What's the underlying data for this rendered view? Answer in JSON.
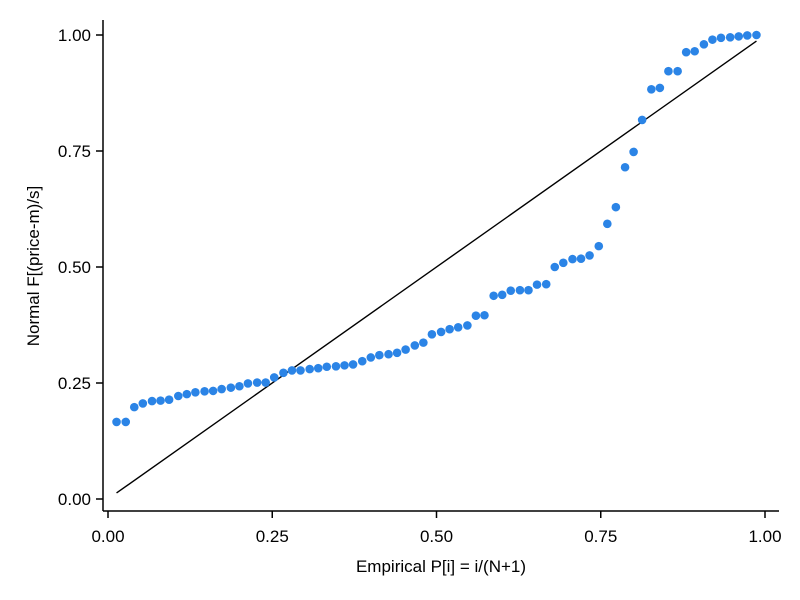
{
  "chart_data": {
    "type": "scatter",
    "xlabel": "Empirical P[i] = i/(N+1)",
    "ylabel": "Normal F[(price-m)/s]",
    "xlim": [
      0,
      1
    ],
    "ylim": [
      0,
      1
    ],
    "xticks": [
      "0.00",
      "0.25",
      "0.50",
      "0.75",
      "1.00"
    ],
    "yticks": [
      "0.00",
      "0.25",
      "0.50",
      "0.75",
      "1.00"
    ],
    "grid": false,
    "point_color": "#2b84e6",
    "reference_line": {
      "x": [
        0.013,
        0.987
      ],
      "y": [
        0.013,
        0.987
      ]
    },
    "series": [
      {
        "x": [
          0.013,
          0.027,
          0.04,
          0.053,
          0.067,
          0.08,
          0.093,
          0.107,
          0.12,
          0.133,
          0.147,
          0.16,
          0.173,
          0.187,
          0.2,
          0.213,
          0.227,
          0.24,
          0.253,
          0.267,
          0.28,
          0.293,
          0.307,
          0.32,
          0.333,
          0.347,
          0.36,
          0.373,
          0.387,
          0.4,
          0.413,
          0.427,
          0.44,
          0.453,
          0.467,
          0.48,
          0.493,
          0.507,
          0.52,
          0.533,
          0.547,
          0.56,
          0.573,
          0.587,
          0.6,
          0.613,
          0.627,
          0.64,
          0.653,
          0.667,
          0.68,
          0.693,
          0.707,
          0.72,
          0.733,
          0.747,
          0.76,
          0.773,
          0.787,
          0.8,
          0.813,
          0.827,
          0.84,
          0.853,
          0.867,
          0.88,
          0.893,
          0.907,
          0.92,
          0.933,
          0.947,
          0.96,
          0.973,
          0.987
        ],
        "y": [
          0.166,
          0.166,
          0.198,
          0.206,
          0.211,
          0.212,
          0.214,
          0.222,
          0.226,
          0.23,
          0.232,
          0.233,
          0.237,
          0.24,
          0.243,
          0.249,
          0.251,
          0.251,
          0.262,
          0.272,
          0.277,
          0.277,
          0.28,
          0.282,
          0.285,
          0.286,
          0.288,
          0.29,
          0.297,
          0.305,
          0.31,
          0.312,
          0.315,
          0.322,
          0.331,
          0.337,
          0.355,
          0.36,
          0.366,
          0.37,
          0.374,
          0.395,
          0.396,
          0.438,
          0.44,
          0.449,
          0.45,
          0.45,
          0.462,
          0.463,
          0.5,
          0.509,
          0.517,
          0.518,
          0.525,
          0.545,
          0.593,
          0.629,
          0.715,
          0.748,
          0.817,
          0.883,
          0.886,
          0.922,
          0.922,
          0.963,
          0.965,
          0.98,
          0.99,
          0.994,
          0.995,
          0.997,
          0.999,
          1.0
        ]
      }
    ]
  }
}
